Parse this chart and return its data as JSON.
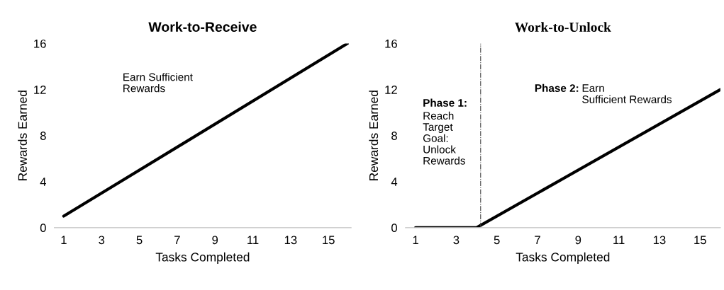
{
  "chart_data": [
    {
      "type": "line",
      "title": "Work-to-Receive",
      "xlabel": "Tasks Completed",
      "ylabel": "Rewards Earned",
      "x": [
        1,
        16
      ],
      "series": [
        {
          "color": "#000000",
          "values": [
            1,
            16
          ]
        }
      ],
      "xlim": [
        0.5,
        16.2
      ],
      "xticks": [
        1,
        3,
        5,
        7,
        9,
        11,
        13,
        15
      ],
      "ylim": [
        0,
        16
      ],
      "yticks": [
        0,
        4,
        8,
        12,
        16
      ],
      "grid": false,
      "legend": false,
      "marker": "none",
      "line_style": "solid",
      "annotations": [
        "Earn Sufficient\nRewards"
      ]
    },
    {
      "type": "line",
      "title": "Work-to-Unlock",
      "xlabel": "Tasks Completed",
      "ylabel": "Rewards Earned",
      "x": [
        1,
        4,
        16
      ],
      "series": [
        {
          "color": "#000000",
          "values": [
            0,
            0,
            12
          ]
        }
      ],
      "xlim": [
        0.5,
        16
      ],
      "xticks": [
        1,
        3,
        5,
        7,
        9,
        11,
        13,
        15
      ],
      "ylim": [
        0,
        16
      ],
      "yticks": [
        0,
        4,
        8,
        12,
        16
      ],
      "grid": false,
      "legend": false,
      "marker": "none",
      "line_style": "solid",
      "ref_lines": [
        {
          "axis": "x",
          "value": 4.2,
          "color": "#404040",
          "line_style": "dashdot"
        }
      ],
      "annotations": [
        "Phase 1:",
        "Reach\nTarget\nGoal:\nUnlock\nRewards",
        "Phase 2:",
        "Earn\nSufficient Rewards"
      ]
    }
  ]
}
